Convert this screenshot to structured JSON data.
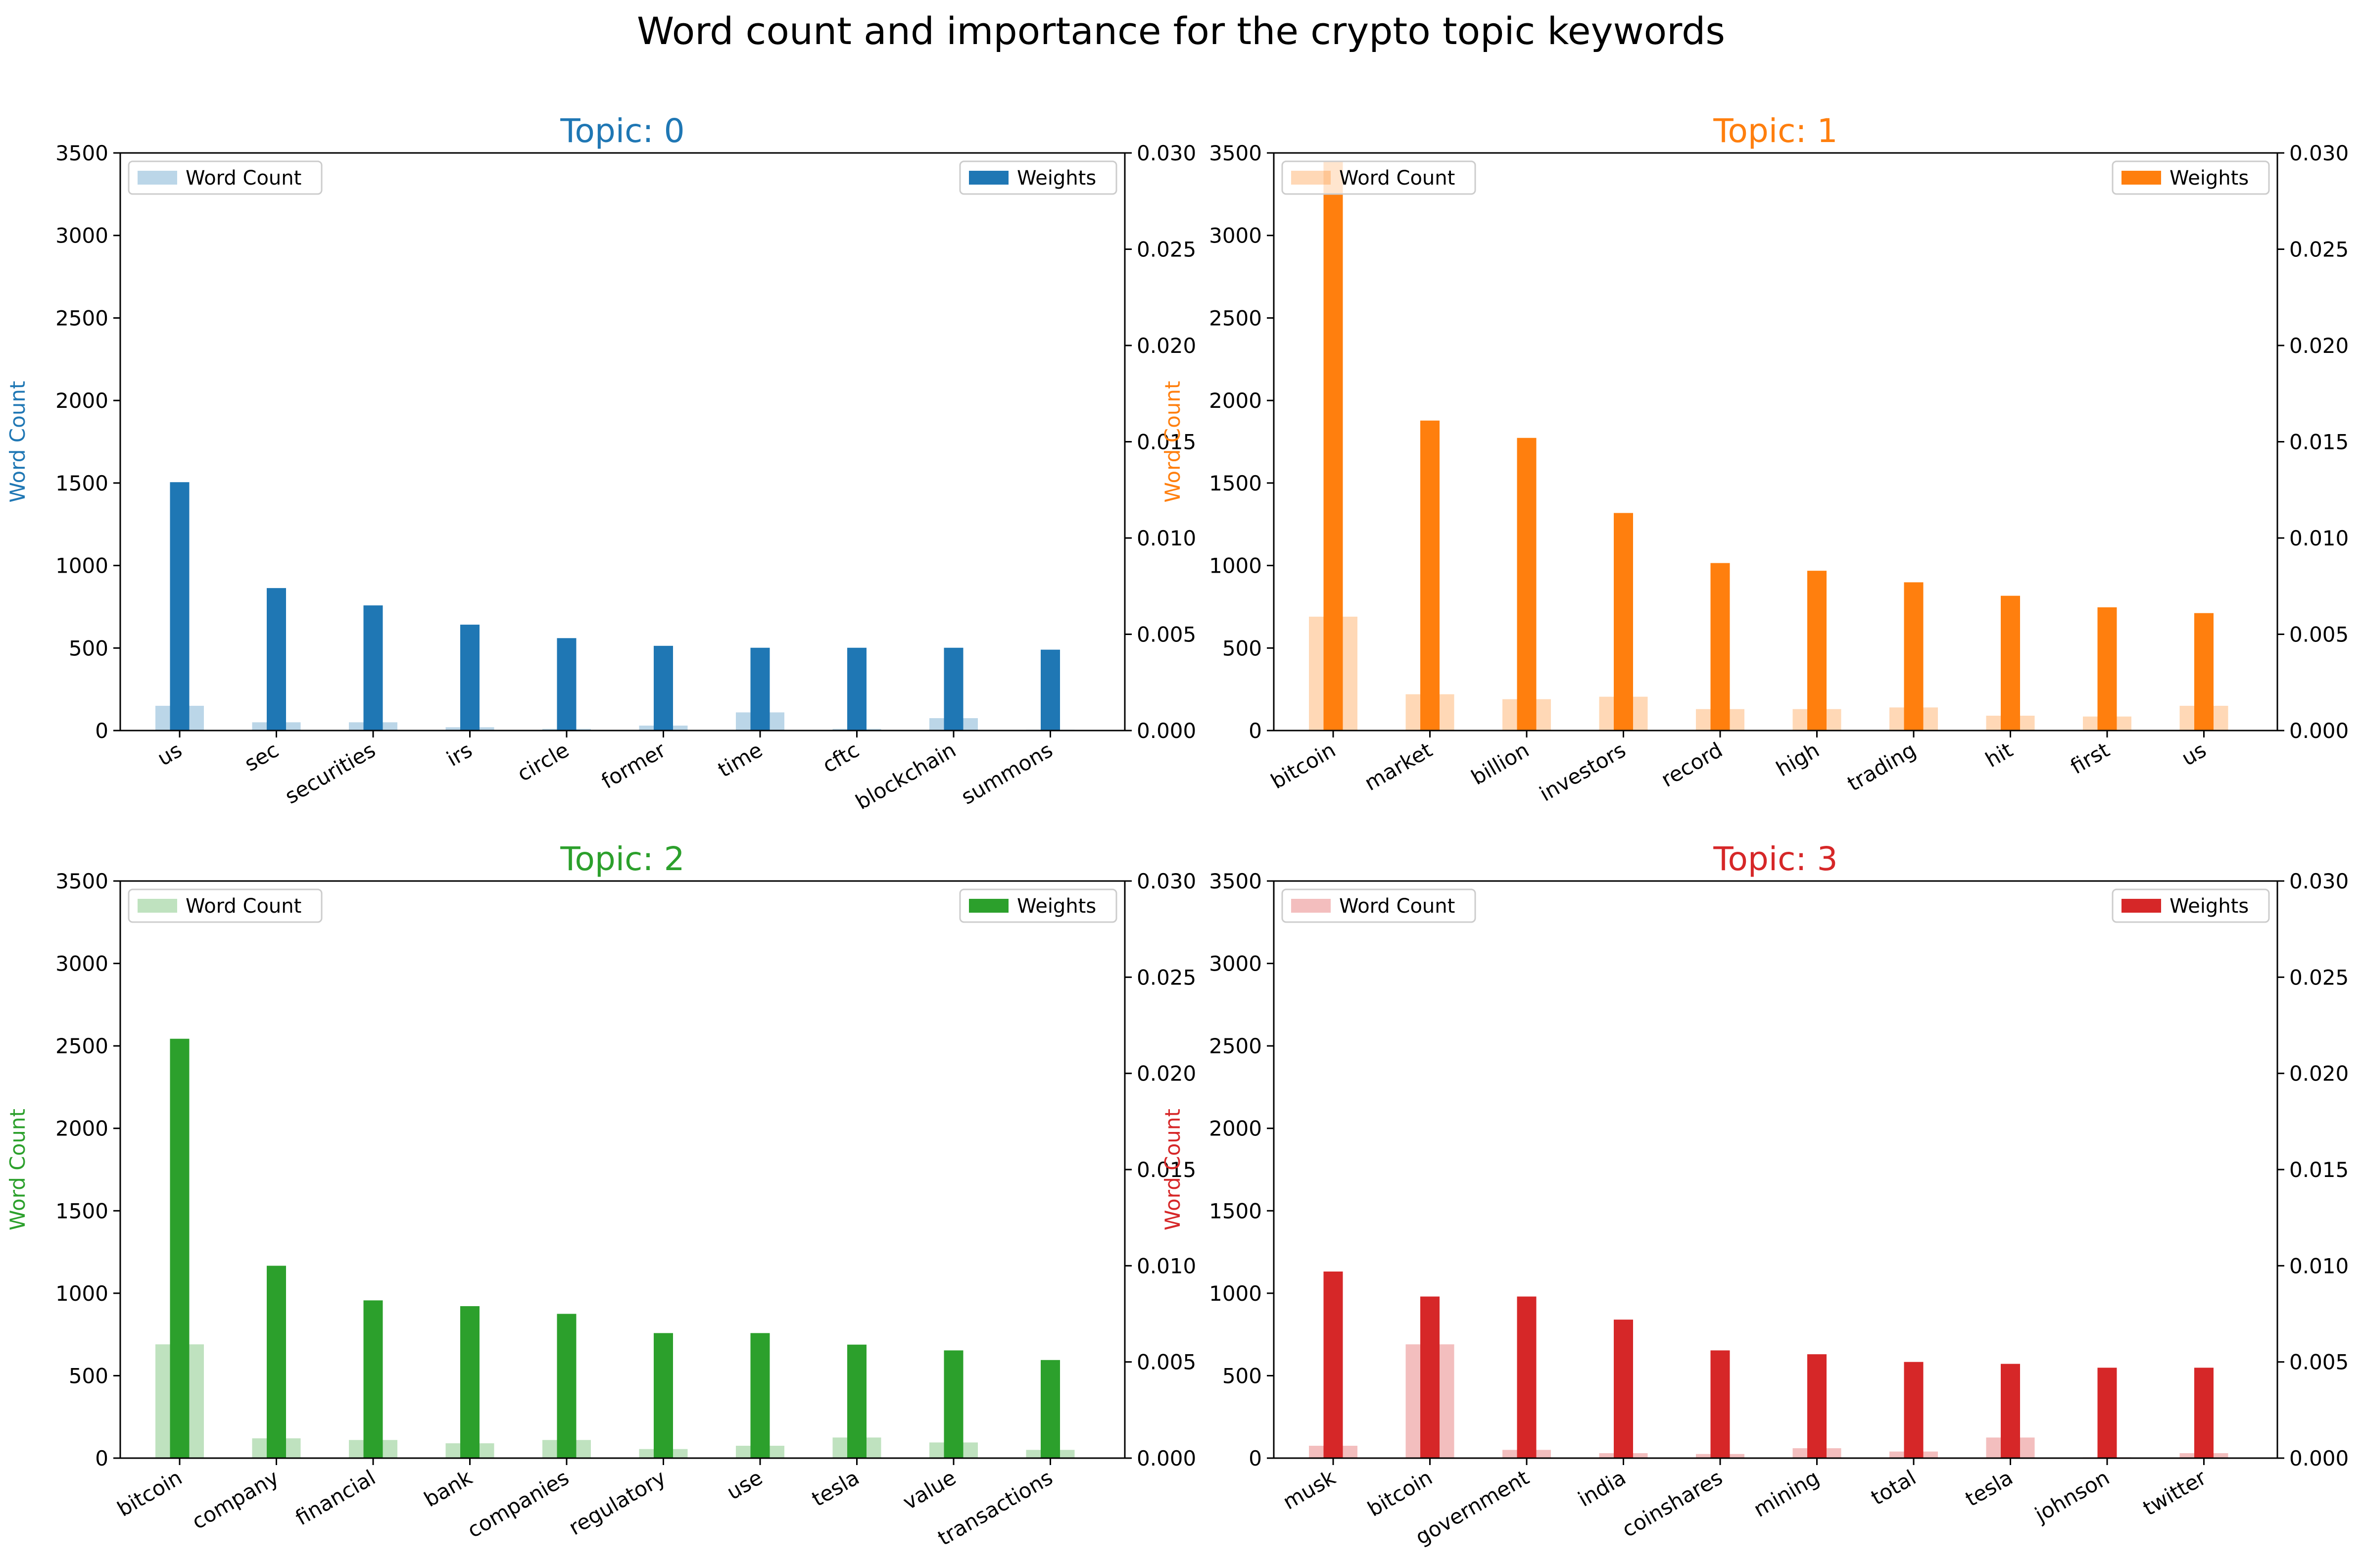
{
  "figure": {
    "title": "Word count and importance for the crypto topic keywords"
  },
  "legend": {
    "word_count_label": "Word Count",
    "weights_label": "Weights"
  },
  "axes_text": {
    "left_ylabel": "Word Count",
    "left_ticks": [
      "0",
      "500",
      "1000",
      "1500",
      "2000",
      "2500",
      "3000",
      "3500"
    ],
    "right_ticks": [
      "0.000",
      "0.005",
      "0.010",
      "0.015",
      "0.020",
      "0.025",
      "0.030"
    ]
  },
  "chart_data": [
    {
      "type": "bar",
      "title": "Topic: 0",
      "color": "#1f77b4",
      "ylabel": "Word Count",
      "ylim": [
        0,
        3500
      ],
      "y2lim": [
        0,
        0.03
      ],
      "grid": false,
      "legend_word_count": "top-left",
      "legend_weights": "top-right",
      "categories": [
        "us",
        "sec",
        "securities",
        "irs",
        "circle",
        "former",
        "time",
        "cftc",
        "blockchain",
        "summons"
      ],
      "series": [
        {
          "name": "Word Count",
          "axis": "left",
          "values": [
            150,
            50,
            50,
            20,
            10,
            30,
            110,
            10,
            75,
            5
          ]
        },
        {
          "name": "Weights",
          "axis": "right",
          "values": [
            0.0129,
            0.0074,
            0.0065,
            0.0055,
            0.0048,
            0.0044,
            0.0043,
            0.0043,
            0.0043,
            0.0042
          ]
        }
      ]
    },
    {
      "type": "bar",
      "title": "Topic: 1",
      "color": "#ff7f0e",
      "ylabel": "Word Count",
      "ylim": [
        0,
        3500
      ],
      "y2lim": [
        0,
        0.03
      ],
      "grid": false,
      "legend_word_count": "top-left",
      "legend_weights": "top-right",
      "categories": [
        "bitcoin",
        "market",
        "billion",
        "investors",
        "record",
        "high",
        "trading",
        "hit",
        "first",
        "us"
      ],
      "series": [
        {
          "name": "Word Count",
          "axis": "left",
          "values": [
            690,
            220,
            190,
            205,
            130,
            130,
            140,
            90,
            85,
            150
          ]
        },
        {
          "name": "Weights",
          "axis": "right",
          "values": [
            0.0296,
            0.0161,
            0.0152,
            0.0113,
            0.0087,
            0.0083,
            0.0077,
            0.007,
            0.0064,
            0.0061
          ]
        }
      ]
    },
    {
      "type": "bar",
      "title": "Topic: 2",
      "color": "#2ca02c",
      "ylabel": "Word Count",
      "ylim": [
        0,
        3500
      ],
      "y2lim": [
        0,
        0.03
      ],
      "grid": false,
      "legend_word_count": "top-left",
      "legend_weights": "top-right",
      "categories": [
        "bitcoin",
        "company",
        "financial",
        "bank",
        "companies",
        "regulatory",
        "use",
        "tesla",
        "value",
        "transactions"
      ],
      "series": [
        {
          "name": "Word Count",
          "axis": "left",
          "values": [
            690,
            120,
            110,
            90,
            110,
            55,
            75,
            125,
            95,
            50
          ]
        },
        {
          "name": "Weights",
          "axis": "right",
          "values": [
            0.0218,
            0.01,
            0.0082,
            0.0079,
            0.0075,
            0.0065,
            0.0065,
            0.0059,
            0.0056,
            0.0051
          ]
        }
      ]
    },
    {
      "type": "bar",
      "title": "Topic: 3",
      "color": "#d62728",
      "ylabel": "Word Count",
      "ylim": [
        0,
        3500
      ],
      "y2lim": [
        0,
        0.03
      ],
      "grid": false,
      "legend_word_count": "top-left",
      "legend_weights": "top-right",
      "categories": [
        "musk",
        "bitcoin",
        "government",
        "india",
        "coinshares",
        "mining",
        "total",
        "tesla",
        "johnson",
        "twitter"
      ],
      "series": [
        {
          "name": "Word Count",
          "axis": "left",
          "values": [
            75,
            690,
            50,
            30,
            25,
            60,
            40,
            125,
            5,
            30
          ]
        },
        {
          "name": "Weights",
          "axis": "right",
          "values": [
            0.0097,
            0.0084,
            0.0084,
            0.0072,
            0.0056,
            0.0054,
            0.005,
            0.0049,
            0.0047,
            0.0047
          ]
        }
      ]
    }
  ]
}
